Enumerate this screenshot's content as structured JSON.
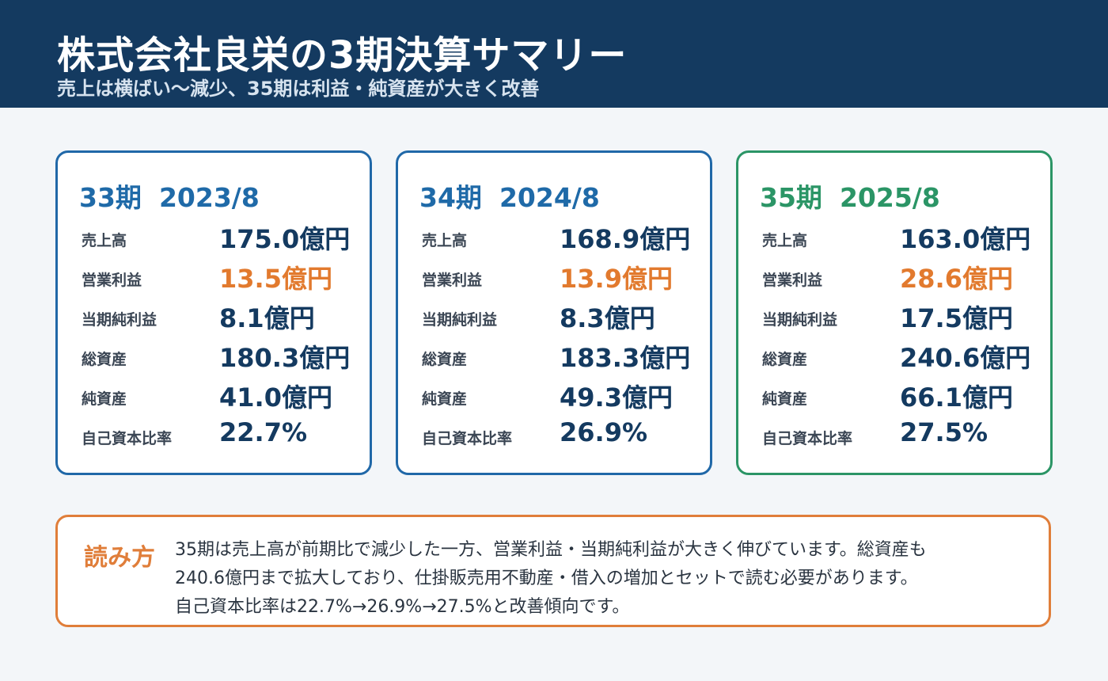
{
  "header": {
    "title": "株式会社良栄の3期決算サマリー",
    "subtitle": "売上は横ばい〜減少、35期は利益・純資産が大きく改善"
  },
  "cards": [
    {
      "period": "33期",
      "date": "2023/8",
      "rows": [
        {
          "label": "売上高",
          "value": "175.0億円"
        },
        {
          "label": "営業利益",
          "value": "13.5億円"
        },
        {
          "label": "当期純利益",
          "value": "8.1億円"
        },
        {
          "label": "総資産",
          "value": "180.3億円"
        },
        {
          "label": "純資産",
          "value": "41.0億円"
        },
        {
          "label": "自己資本比率",
          "value": "22.7%"
        }
      ]
    },
    {
      "period": "34期",
      "date": "2024/8",
      "rows": [
        {
          "label": "売上高",
          "value": "168.9億円"
        },
        {
          "label": "営業利益",
          "value": "13.9億円"
        },
        {
          "label": "当期純利益",
          "value": "8.3億円"
        },
        {
          "label": "総資産",
          "value": "183.3億円"
        },
        {
          "label": "純資産",
          "value": "49.3億円"
        },
        {
          "label": "自己資本比率",
          "value": "26.9%"
        }
      ]
    },
    {
      "period": "35期",
      "date": "2025/8",
      "rows": [
        {
          "label": "売上高",
          "value": "163.0億円"
        },
        {
          "label": "営業利益",
          "value": "28.6億円"
        },
        {
          "label": "当期純利益",
          "value": "17.5億円"
        },
        {
          "label": "総資産",
          "value": "240.6億円"
        },
        {
          "label": "純資産",
          "value": "66.1億円"
        },
        {
          "label": "自己資本比率",
          "value": "27.5%"
        }
      ]
    }
  ],
  "note": {
    "label": "読み方",
    "lines": [
      "35期は売上高が前期比で減少した一方、営業利益・当期純利益が大きく伸びています。総資産も",
      "240.6億円まで拡大しており、仕掛販売用不動産・借入の増加とセットで読む必要があります。",
      "自己資本比率は22.7%→26.9%→27.5%と改善傾向です。"
    ]
  },
  "colors": {
    "header_bg": "#143a60",
    "blue_accent": "#1f6aa8",
    "green_accent": "#2b9566",
    "orange_accent": "#e07e3a",
    "value_navy": "#143a60"
  }
}
